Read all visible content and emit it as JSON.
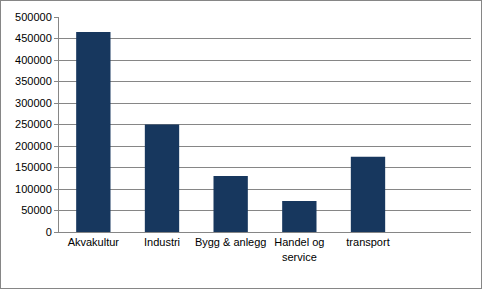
{
  "chart_data": {
    "type": "bar",
    "categories": [
      "Akvakultur",
      "Industri",
      "Bygg & anlegg",
      "Handel og service",
      "transport",
      null
    ],
    "values": [
      465000,
      250000,
      130000,
      72000,
      175000,
      null
    ],
    "color": "#17375e",
    "ylim": [
      0,
      500000
    ],
    "yticks": [
      0,
      50000,
      100000,
      150000,
      200000,
      250000,
      300000,
      350000,
      400000,
      450000,
      500000
    ],
    "grid": true
  }
}
